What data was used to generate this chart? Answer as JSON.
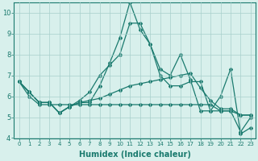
{
  "title": "",
  "xlabel": "Humidex (Indice chaleur)",
  "x_values": [
    0,
    1,
    2,
    3,
    4,
    5,
    6,
    7,
    8,
    9,
    10,
    11,
    12,
    13,
    14,
    15,
    16,
    17,
    18,
    19,
    20,
    21,
    22,
    23
  ],
  "line1": [
    6.7,
    6.2,
    5.7,
    5.7,
    5.2,
    5.5,
    5.7,
    5.7,
    6.5,
    7.6,
    8.8,
    10.5,
    9.2,
    8.5,
    7.3,
    7.0,
    8.0,
    6.8,
    5.3,
    5.3,
    6.0,
    7.3,
    4.2,
    4.5
  ],
  "line2": [
    6.7,
    6.2,
    5.7,
    5.7,
    5.2,
    5.5,
    5.8,
    6.2,
    7.0,
    7.5,
    8.0,
    9.5,
    9.5,
    8.5,
    7.0,
    6.5,
    6.5,
    6.7,
    6.7,
    5.3,
    5.3,
    5.3,
    4.3,
    5.0
  ],
  "line3": [
    6.7,
    6.2,
    5.7,
    5.7,
    5.2,
    5.5,
    5.7,
    5.8,
    5.9,
    6.1,
    6.3,
    6.5,
    6.6,
    6.7,
    6.8,
    6.9,
    7.0,
    7.1,
    6.4,
    5.8,
    5.4,
    5.4,
    5.1,
    5.1
  ],
  "line4": [
    6.7,
    6.0,
    5.6,
    5.6,
    5.6,
    5.6,
    5.6,
    5.6,
    5.6,
    5.6,
    5.6,
    5.6,
    5.6,
    5.6,
    5.6,
    5.6,
    5.6,
    5.6,
    5.6,
    5.6,
    5.3,
    5.3,
    5.1,
    5.1
  ],
  "color": "#1a7a6e",
  "bg_color": "#d8f0ec",
  "grid_color": "#a8d0cc",
  "ylim": [
    4,
    10.5
  ],
  "yticks": [
    4,
    5,
    6,
    7,
    8,
    9,
    10
  ],
  "marker": "D",
  "markersize": 2.0,
  "linewidth": 0.9
}
